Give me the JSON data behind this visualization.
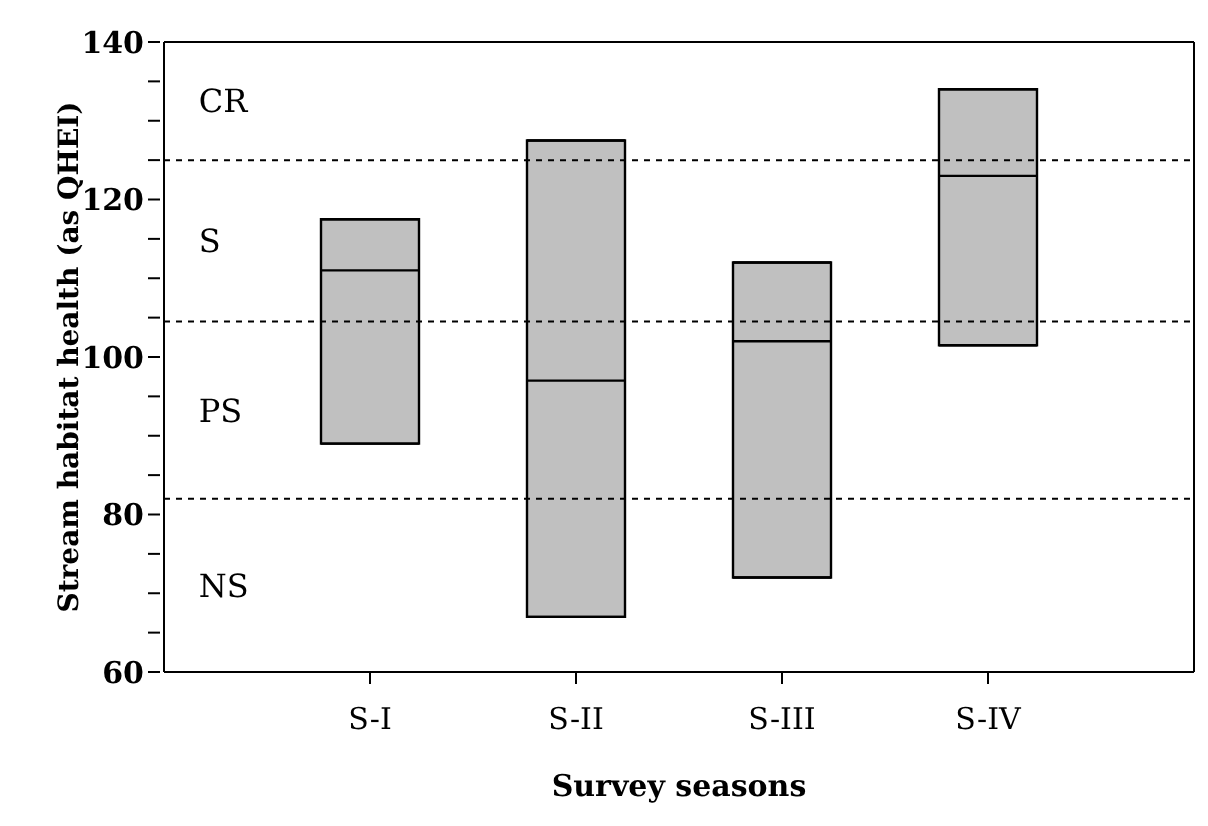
{
  "chart_data": {
    "type": "box",
    "xlabel": "Survey seasons",
    "ylabel": "Stream habitat health (as QHEI)",
    "categories": [
      "S-I",
      "S-II",
      "S-III",
      "S-IV"
    ],
    "color": "#c0c0c0",
    "boxes": [
      {
        "low": 89,
        "q1": 89,
        "median": 111,
        "q3": 117.5,
        "high": 117.5
      },
      {
        "low": 67,
        "q1": 67,
        "median": 97,
        "q3": 127.5,
        "high": 127.5
      },
      {
        "low": 72,
        "q1": 72,
        "median": 102,
        "q3": 112,
        "high": 112
      },
      {
        "low": 101.5,
        "q1": 101.5,
        "median": 123,
        "q3": 134,
        "high": 134
      }
    ],
    "ylim": [
      60,
      140
    ],
    "yticks": [
      60,
      {
        "value": 65,
        "label": null
      },
      {
        "value": 70,
        "label": null
      },
      {
        "value": 75,
        "label": null
      },
      80,
      {
        "value": 85,
        "label": null
      },
      {
        "value": 90,
        "label": null
      },
      {
        "value": 95,
        "label": null
      },
      100,
      {
        "value": 105,
        "label": null
      },
      {
        "value": 110,
        "label": null
      },
      {
        "value": 115,
        "label": null
      },
      120,
      {
        "value": 125,
        "label": null
      },
      {
        "value": 130,
        "label": null
      },
      {
        "value": 135,
        "label": null
      },
      140
    ],
    "ref_lines": [
      {
        "axis": "y",
        "value": 125,
        "color": "#000000",
        "line_style": "dotted"
      },
      {
        "axis": "y",
        "value": 104.5,
        "color": "#000000",
        "line_style": "dotted"
      },
      {
        "axis": "y",
        "value": 82,
        "color": "#000000",
        "line_style": "dotted"
      }
    ],
    "annotations": [
      "CR",
      "S",
      "PS",
      "NS"
    ],
    "grid": false,
    "legend": false
  }
}
